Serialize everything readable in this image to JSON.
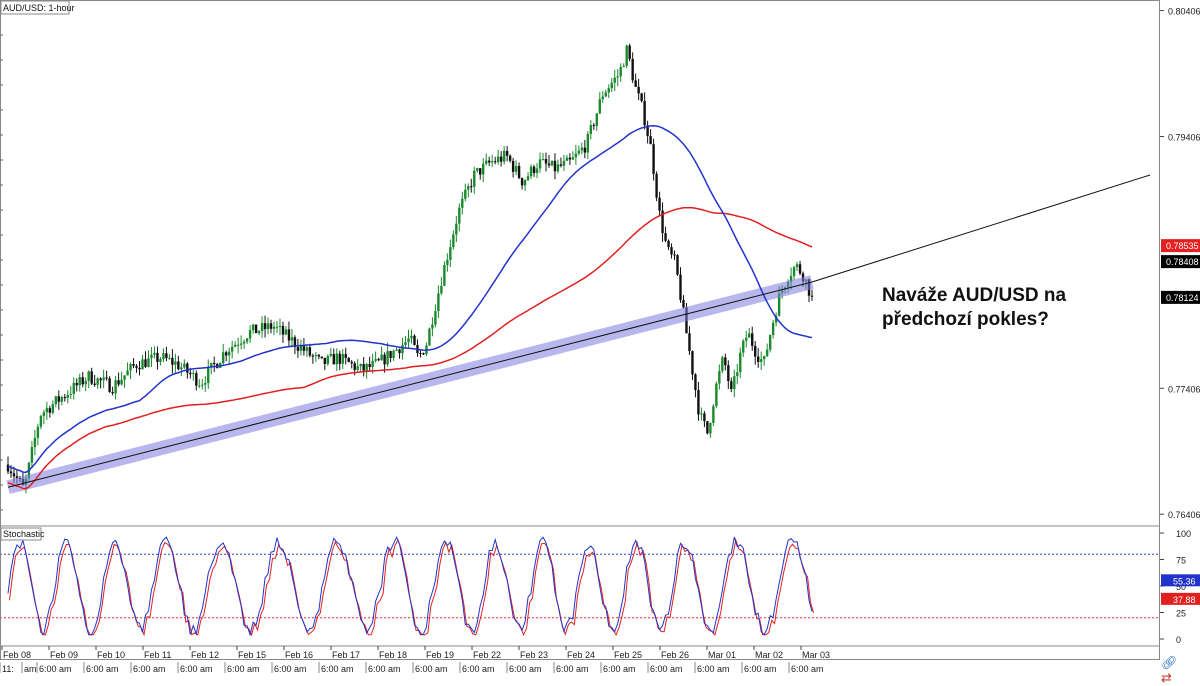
{
  "chart_data": [
    {
      "type": "candlestick",
      "title": "AUD/USD: 1-hour",
      "price_axis": {
        "ticks": [
          "0.80406",
          "0.79406",
          "0.77406",
          "0.76406"
        ],
        "labels": [
          {
            "text": "0.78535",
            "value": 0.78535,
            "color": "#e52020"
          },
          {
            "text": "0.78408",
            "value": 0.78408,
            "color": "#000000"
          },
          {
            "text": "0.78124",
            "value": 0.78124,
            "color": "#000000"
          }
        ],
        "ylim": [
          0.7632,
          0.8049
        ]
      },
      "date_labels": [
        "Feb 08",
        "Feb 09",
        "Feb 10",
        "Feb 11",
        "Feb 12",
        "Feb 15",
        "Feb 16",
        "Feb 17",
        "Feb 18",
        "Feb 19",
        "Feb 22",
        "Feb 23",
        "Feb 24",
        "Feb 25",
        "Feb 26",
        "Mar 01",
        "Mar 02",
        "Mar 03"
      ],
      "time_labels": [
        "11:",
        "am",
        "6:00 am",
        "6:00 am",
        "6:00 am",
        "6:00 am",
        "6:00 am",
        "6:00 am",
        "6:00 am",
        "6:00 am",
        "6:00 am",
        "6:00 am",
        "6:00 am",
        "6:00 am",
        "6:00 am",
        "6:00 am",
        "6:00 am",
        "6:00 am",
        "6:00 am"
      ],
      "price_path": [
        [
          0,
          0.768
        ],
        [
          0.02,
          0.766
        ],
        [
          0.04,
          0.772
        ],
        [
          0.07,
          0.7735
        ],
        [
          0.1,
          0.775
        ],
        [
          0.13,
          0.7742
        ],
        [
          0.16,
          0.776
        ],
        [
          0.19,
          0.7765
        ],
        [
          0.21,
          0.776
        ],
        [
          0.24,
          0.7745
        ],
        [
          0.27,
          0.777
        ],
        [
          0.3,
          0.7785
        ],
        [
          0.33,
          0.779
        ],
        [
          0.35,
          0.778
        ],
        [
          0.37,
          0.777
        ],
        [
          0.39,
          0.776
        ],
        [
          0.41,
          0.7765
        ],
        [
          0.44,
          0.7755
        ],
        [
          0.46,
          0.776
        ],
        [
          0.48,
          0.777
        ],
        [
          0.5,
          0.778
        ],
        [
          0.51,
          0.7765
        ],
        [
          0.52,
          0.7775
        ],
        [
          0.54,
          0.783
        ],
        [
          0.56,
          0.788
        ],
        [
          0.58,
          0.791
        ],
        [
          0.6,
          0.792
        ],
        [
          0.62,
          0.7925
        ],
        [
          0.64,
          0.7905
        ],
        [
          0.66,
          0.792
        ],
        [
          0.68,
          0.7915
        ],
        [
          0.7,
          0.792
        ],
        [
          0.72,
          0.7935
        ],
        [
          0.74,
          0.7975
        ],
        [
          0.76,
          0.799
        ],
        [
          0.77,
          0.801
        ],
        [
          0.78,
          0.798
        ],
        [
          0.79,
          0.796
        ],
        [
          0.8,
          0.793
        ],
        [
          0.81,
          0.788
        ],
        [
          0.82,
          0.785
        ],
        [
          0.83,
          0.784
        ],
        [
          0.84,
          0.78
        ],
        [
          0.85,
          0.776
        ],
        [
          0.86,
          0.772
        ],
        [
          0.87,
          0.7705
        ],
        [
          0.88,
          0.774
        ],
        [
          0.89,
          0.7765
        ],
        [
          0.9,
          0.7735
        ],
        [
          0.91,
          0.7765
        ],
        [
          0.92,
          0.7785
        ],
        [
          0.93,
          0.777
        ],
        [
          0.94,
          0.776
        ],
        [
          0.95,
          0.779
        ],
        [
          0.96,
          0.7815
        ],
        [
          0.97,
          0.783
        ],
        [
          0.98,
          0.7838
        ],
        [
          0.99,
          0.783
        ],
        [
          1.0,
          0.7812
        ]
      ],
      "ma_fast": {
        "color": "#2233cc",
        "label": ""
      },
      "ma_slow": {
        "color": "#e02020",
        "label": ""
      },
      "trendline": {
        "start": [
          0,
          0.7662
        ],
        "end": [
          1.0,
          0.7825
        ],
        "extend_end_value": 0.791
      },
      "trend_band_color": "#7b7bde"
    },
    {
      "type": "line",
      "title": "Stochastic",
      "ylim": [
        0,
        100
      ],
      "ticks": [
        "100",
        "75",
        "50",
        "25",
        "0"
      ],
      "levels": [
        80,
        20
      ],
      "labels": [
        {
          "text": "55.36",
          "value": 55.36,
          "color": "#2233cc"
        },
        {
          "text": "37.88",
          "value": 37.88,
          "color": "#e02020"
        }
      ],
      "series_colors": {
        "k": "#2233cc",
        "d": "#e02020"
      }
    }
  ],
  "annotation": {
    "line1": "Naváže AUD/USD na",
    "line2": "předchozí pokles?"
  },
  "icons": [
    "link-icon",
    "arrows-icon"
  ]
}
